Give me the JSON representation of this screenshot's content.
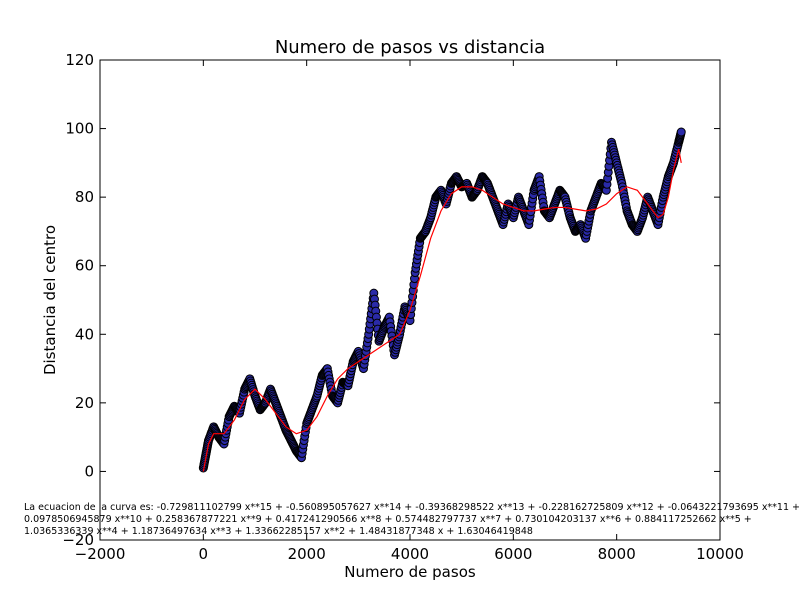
{
  "chart_data": {
    "type": "scatter",
    "title": "Numero de pasos vs distancia",
    "xlabel": "Numero de pasos",
    "ylabel": "Distancia del centro",
    "xlim": [
      -2000,
      10000
    ],
    "ylim": [
      -20,
      120
    ],
    "xticks": [
      -2000,
      0,
      2000,
      4000,
      6000,
      8000,
      10000
    ],
    "yticks": [
      -20,
      0,
      20,
      40,
      60,
      80,
      100,
      120
    ],
    "grid": false,
    "series": [
      {
        "kind": "scatter",
        "marker_color": "#2a2aa8",
        "edge_color": "#000000",
        "x": [
          0,
          50,
          100,
          200,
          300,
          400,
          500,
          600,
          700,
          800,
          900,
          1000,
          1100,
          1200,
          1300,
          1400,
          1500,
          1600,
          1700,
          1800,
          1900,
          2000,
          2100,
          2200,
          2300,
          2400,
          2500,
          2600,
          2700,
          2800,
          2900,
          3000,
          3100,
          3200,
          3300,
          3400,
          3500,
          3600,
          3700,
          3800,
          3900,
          4000,
          4100,
          4200,
          4300,
          4400,
          4500,
          4600,
          4700,
          4800,
          4900,
          5000,
          5100,
          5200,
          5300,
          5400,
          5500,
          5600,
          5700,
          5800,
          5900,
          6000,
          6100,
          6200,
          6300,
          6400,
          6500,
          6600,
          6700,
          6800,
          6900,
          7000,
          7100,
          7200,
          7300,
          7400,
          7500,
          7600,
          7700,
          7800,
          7900,
          8000,
          8100,
          8200,
          8300,
          8400,
          8500,
          8600,
          8700,
          8800,
          8900,
          9000,
          9100,
          9200,
          9250
        ],
        "y": [
          1,
          5,
          9,
          13,
          10,
          8,
          16,
          19,
          17,
          24,
          27,
          22,
          18,
          20,
          24,
          20,
          16,
          12,
          9,
          6,
          4,
          14,
          18,
          22,
          28,
          30,
          22,
          20,
          26,
          25,
          32,
          35,
          30,
          40,
          52,
          38,
          42,
          45,
          34,
          40,
          48,
          44,
          58,
          68,
          70,
          74,
          80,
          82,
          78,
          84,
          86,
          83,
          84,
          80,
          82,
          86,
          84,
          80,
          76,
          72,
          78,
          74,
          80,
          76,
          72,
          82,
          86,
          76,
          74,
          78,
          82,
          80,
          74,
          70,
          72,
          68,
          76,
          80,
          84,
          82,
          96,
          90,
          84,
          76,
          72,
          70,
          74,
          80,
          76,
          72,
          80,
          86,
          90,
          96,
          99
        ]
      },
      {
        "kind": "line",
        "color": "#ff0000",
        "x": [
          0,
          100,
          200,
          400,
          600,
          800,
          1000,
          1200,
          1400,
          1600,
          1800,
          2000,
          2200,
          2400,
          2600,
          2800,
          3000,
          3200,
          3400,
          3600,
          3800,
          4000,
          4200,
          4400,
          4600,
          4800,
          5000,
          5200,
          5400,
          5600,
          5800,
          6000,
          6200,
          6400,
          6600,
          6800,
          7000,
          7200,
          7400,
          7600,
          7800,
          8000,
          8200,
          8400,
          8600,
          8800,
          8900,
          9000,
          9100,
          9200,
          9250
        ],
        "y": [
          0,
          8,
          11,
          11,
          15,
          21,
          24,
          21,
          17,
          13,
          11,
          12,
          16,
          22,
          27,
          30,
          32,
          34,
          36,
          38,
          40,
          47,
          57,
          68,
          76,
          81,
          83,
          83,
          82,
          80,
          78,
          77,
          76,
          76,
          76.5,
          77,
          77,
          76.5,
          76,
          76.5,
          78,
          81,
          83,
          82,
          78,
          74,
          75,
          80,
          88,
          94,
          90
        ]
      }
    ],
    "annotations": [
      "La ecuacion de la curva es: -0.729811102799 x**15 + -0.560895057627 x**14 + -0.39368298522 x**13 + -0.228162725809 x**12 + -0.0643221793695 x**11 +",
      "0.0978506945879 x**10 + 0.258367877221 x**9 + 0.417241290566 x**8 + 0.574482797737 x**7 + 0.730104203137 x**6 + 0.884117252662 x**5 +",
      "1.0365336339 x**4 + 1.18736497634 x**3 + 1.33662285157 x**2 + 1.48431877348 x + 1.63046419848"
    ]
  }
}
